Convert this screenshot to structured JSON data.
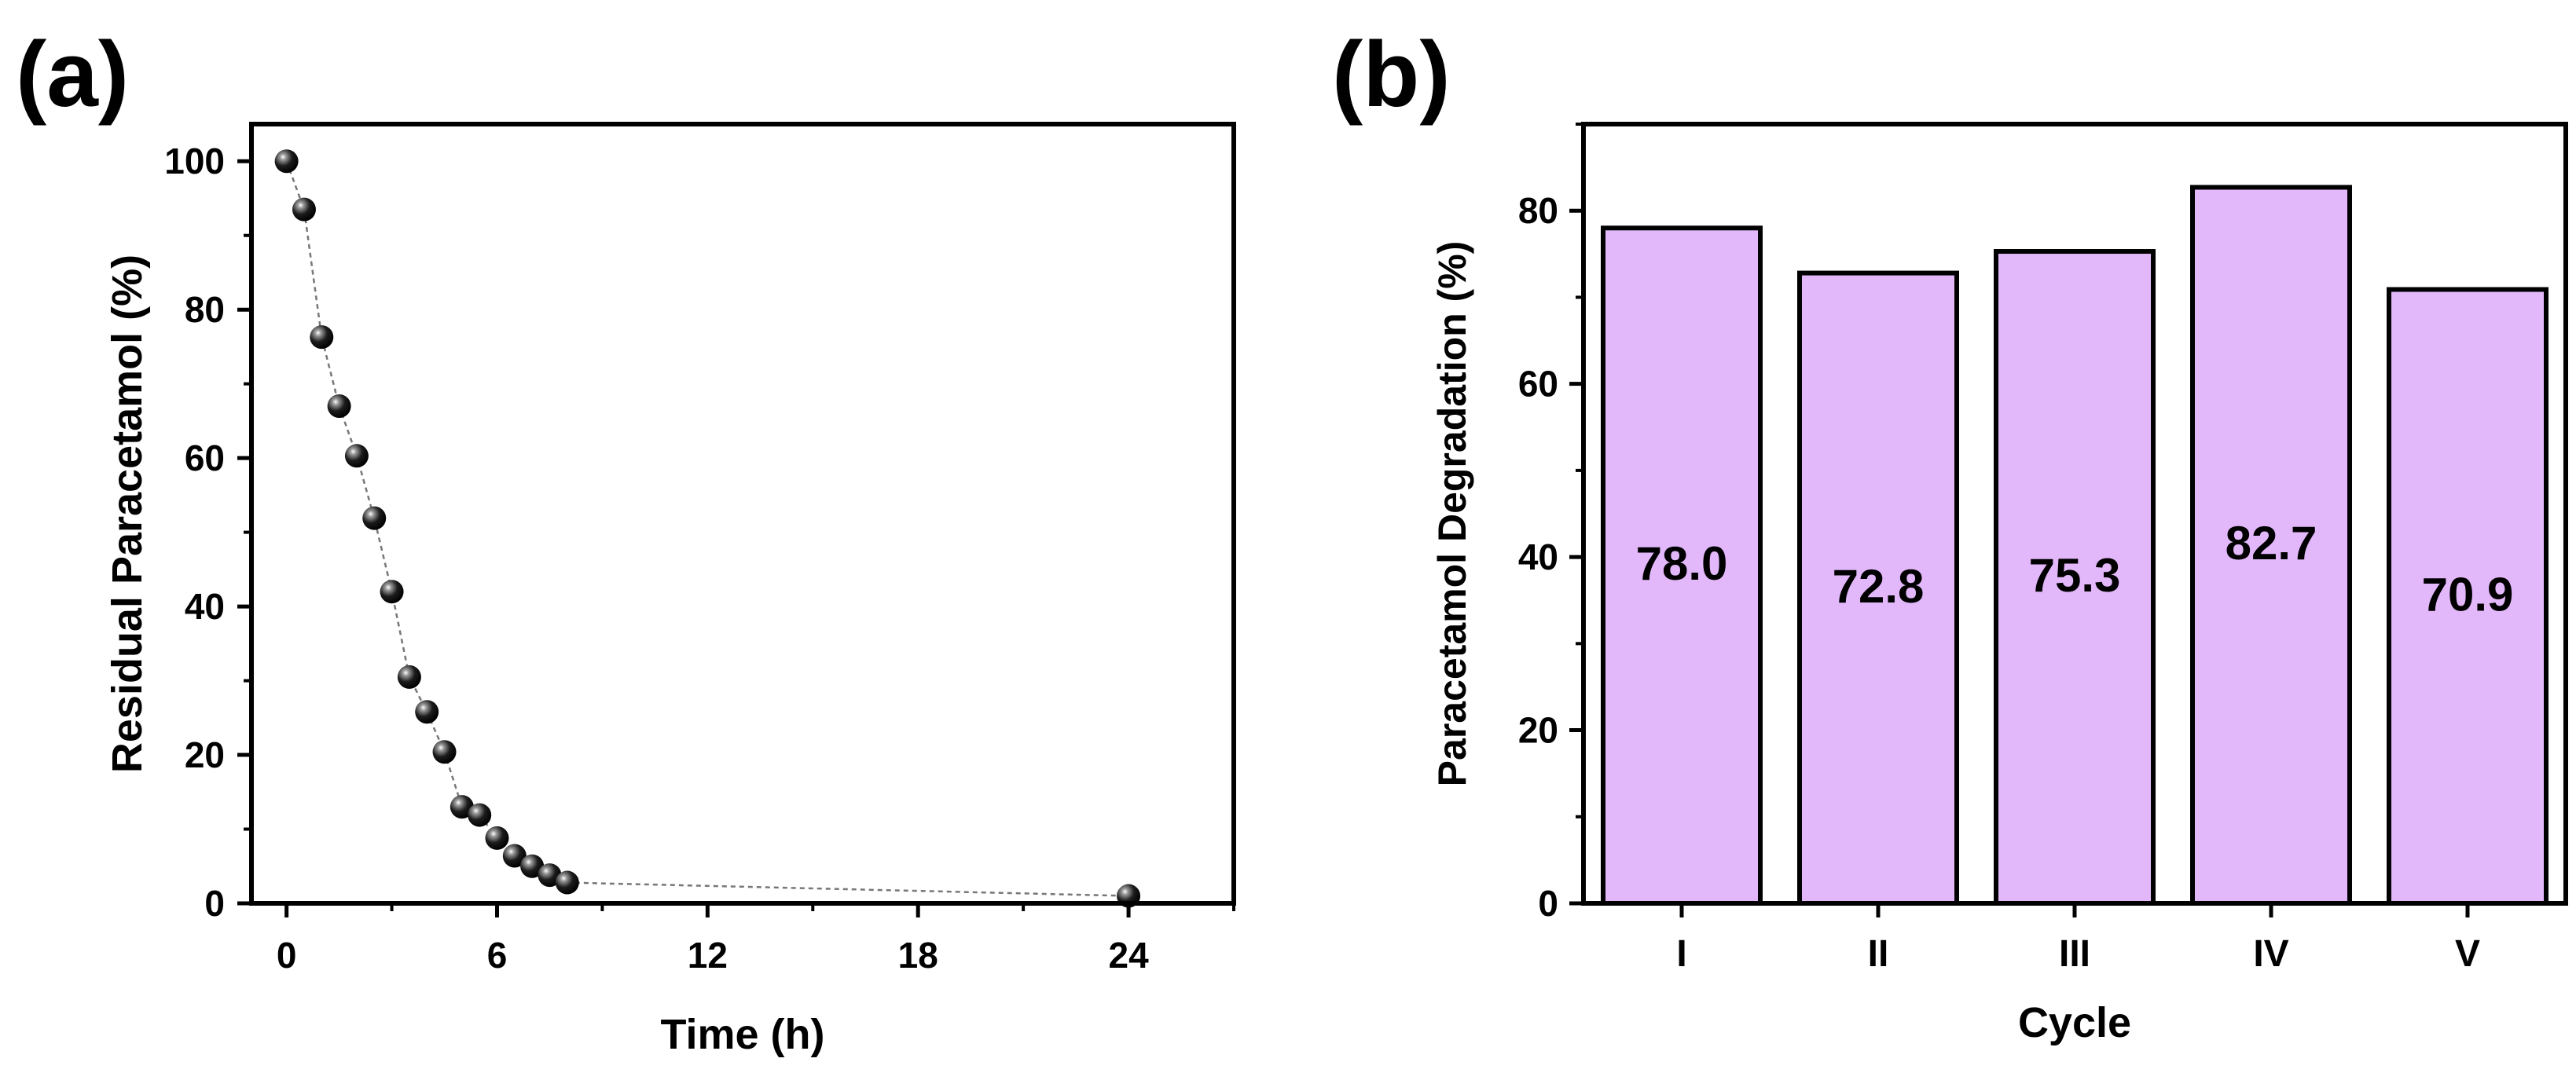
{
  "chart_data": [
    {
      "panel_label": "(a)",
      "type": "scatter",
      "marker_style": "black spheres joined by a dashed gray line",
      "xlabel": "Time (h)",
      "ylabel": "Residual Paracetamol (%)",
      "xlim": [
        -1,
        27
      ],
      "ylim": [
        0,
        105
      ],
      "xticks": [
        0,
        6,
        12,
        18,
        24
      ],
      "yticks": [
        0,
        20,
        40,
        60,
        80,
        100
      ],
      "x": [
        0,
        0.5,
        1,
        1.5,
        2,
        2.5,
        3,
        3.5,
        4,
        4.5,
        5,
        5.5,
        6,
        6.5,
        7,
        7.5,
        8,
        24
      ],
      "y": [
        100,
        93.5,
        76.3,
        67,
        60.3,
        51.9,
        42,
        30.5,
        25.8,
        20.4,
        13,
        11.9,
        8.8,
        6.4,
        5,
        3.8,
        2.8,
        1
      ]
    },
    {
      "panel_label": "(b)",
      "type": "bar",
      "xlabel": "Cycle",
      "ylabel": "Paracetamol Degradation (%)",
      "ylim": [
        0,
        90
      ],
      "yticks": [
        0,
        20,
        40,
        60,
        80
      ],
      "categories": [
        "I",
        "II",
        "III",
        "IV",
        "V"
      ],
      "values": [
        78.0,
        72.8,
        75.3,
        82.7,
        70.9
      ],
      "value_labels": [
        "78.0",
        "72.8",
        "75.3",
        "82.7",
        "70.9"
      ],
      "bar_color": "#e2b8fb",
      "edge_color": "#000000"
    }
  ]
}
